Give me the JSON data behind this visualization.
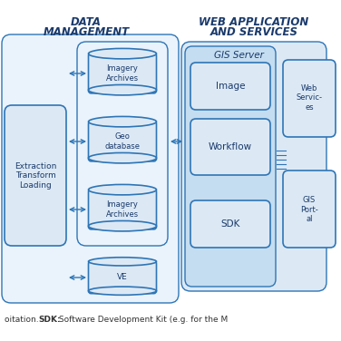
{
  "bg_color": "#ffffff",
  "title1": "DATA",
  "title2": "MANAGEMENT",
  "title3": "WEB APPLICATION",
  "title4": "AND SERVICES",
  "title_color": "#1f4e79",
  "box_fill_light": "#dce9f5",
  "box_fill_mid": "#b8d4eb",
  "box_stroke": "#2e75b6",
  "text_color": "#1a3a6b",
  "footer_text": "oitation. SDK: Software Development Kit (e.g. for the M",
  "gis_server_label": "GIS Server",
  "etl_label": "Extraction\nTransform\nLoading",
  "imagery1_label": "Imagery\nArchives",
  "geo_label": "Geo\ndatabase",
  "imagery2_label": "Imagery\nArchives",
  "ve_label": "VE",
  "image_label": "Image",
  "workflow_label": "Workflow",
  "sdk_label": "SDK",
  "web_services_label": "Web\nServic...",
  "gis_portal_label": "GIS\nPort...",
  "arrow_color": "#2e75b6"
}
